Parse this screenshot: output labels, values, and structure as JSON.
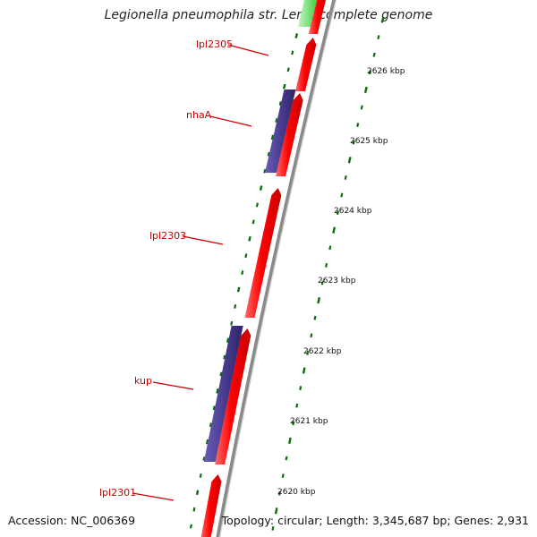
{
  "title": "Legionella pneumophila str. Lens, complete genome",
  "accession_label": "Accession: NC_006369",
  "topology_label": "Topology: circular; Length: 3,345,687 bp; Genes: 2,931",
  "colors": {
    "forward_gene": "#ff0000",
    "reverse_gene": "#4a3d90",
    "rna_gene": "#33cc33",
    "tick": "#0a6e0a",
    "backbone": "#8a8a8a",
    "label": "#cc0000"
  },
  "gene_labels": [
    "lpl2305",
    "nhaA",
    "lpl2303",
    "kup",
    "lpl2301"
  ],
  "scale_labels": [
    "2626 kbp",
    "2625 kbp",
    "2624 kbp",
    "2623 kbp",
    "2622 kbp",
    "2621 kbp",
    "2620 kbp"
  ]
}
